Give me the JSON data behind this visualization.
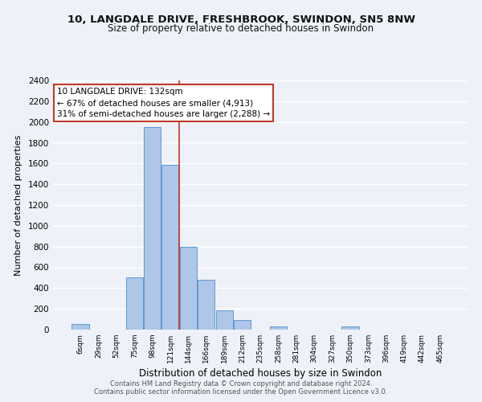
{
  "title": "10, LANGDALE DRIVE, FRESHBROOK, SWINDON, SN5 8NW",
  "subtitle": "Size of property relative to detached houses in Swindon",
  "xlabel": "Distribution of detached houses by size in Swindon",
  "ylabel": "Number of detached properties",
  "bar_color": "#aec6e8",
  "bar_edge_color": "#5b9bd5",
  "bin_labels": [
    "6sqm",
    "29sqm",
    "52sqm",
    "75sqm",
    "98sqm",
    "121sqm",
    "144sqm",
    "166sqm",
    "189sqm",
    "212sqm",
    "235sqm",
    "258sqm",
    "281sqm",
    "304sqm",
    "327sqm",
    "350sqm",
    "373sqm",
    "396sqm",
    "419sqm",
    "442sqm",
    "465sqm"
  ],
  "bar_heights": [
    55,
    0,
    0,
    500,
    1950,
    1590,
    800,
    480,
    185,
    90,
    0,
    30,
    0,
    0,
    0,
    30,
    0,
    0,
    0,
    0,
    0
  ],
  "ylim": [
    0,
    2400
  ],
  "yticks": [
    0,
    200,
    400,
    600,
    800,
    1000,
    1200,
    1400,
    1600,
    1800,
    2000,
    2200,
    2400
  ],
  "vline_x": 5.5,
  "vline_color": "#c0392b",
  "annotation_title": "10 LANGDALE DRIVE: 132sqm",
  "annotation_line1": "← 67% of detached houses are smaller (4,913)",
  "annotation_line2": "31% of semi-detached houses are larger (2,288) →",
  "annotation_box_color": "#ffffff",
  "annotation_box_edge": "#c0392b",
  "footer1": "Contains HM Land Registry data © Crown copyright and database right 2024.",
  "footer2": "Contains public sector information licensed under the Open Government Licence v3.0.",
  "background_color": "#eef2f8",
  "grid_color": "#ffffff"
}
